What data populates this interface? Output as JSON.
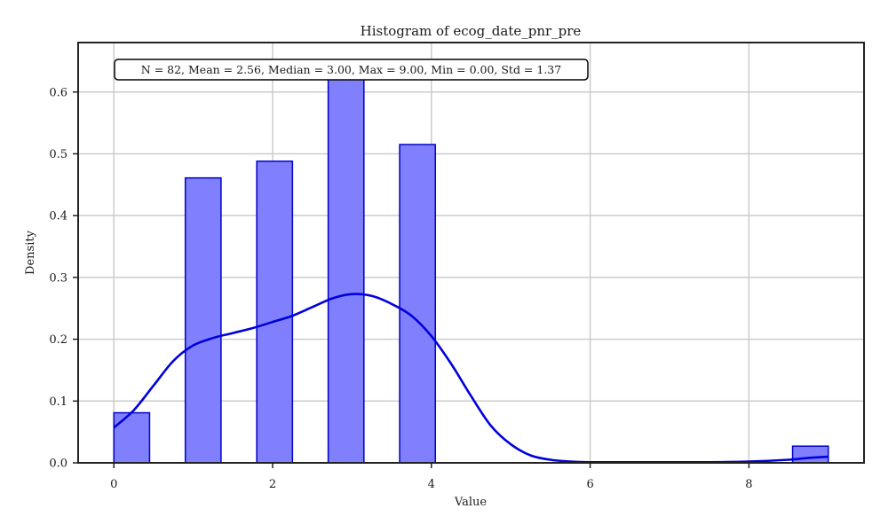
{
  "chart_data": {
    "type": "bar",
    "title": "Histogram of ecog_date_pnr_pre",
    "xlabel": "Value",
    "ylabel": "Density",
    "xlim": [
      -0.45,
      9.45
    ],
    "ylim": [
      0,
      0.68
    ],
    "xticks": [
      0,
      2,
      4,
      6,
      8
    ],
    "yticks": [
      0.0,
      0.1,
      0.2,
      0.3,
      0.4,
      0.5,
      0.6
    ],
    "grid": true,
    "bin_width": 0.45,
    "bins": [
      {
        "start": 0.0,
        "end": 0.45,
        "density": 0.081
      },
      {
        "start": 0.9,
        "end": 1.35,
        "density": 0.461
      },
      {
        "start": 1.8,
        "end": 2.25,
        "density": 0.488
      },
      {
        "start": 2.7,
        "end": 3.15,
        "density": 0.624
      },
      {
        "start": 3.6,
        "end": 4.05,
        "density": 0.515
      },
      {
        "start": 8.55,
        "end": 9.0,
        "density": 0.027
      }
    ],
    "kde": {
      "x": [
        0,
        0.25,
        0.5,
        0.75,
        1.0,
        1.25,
        1.5,
        1.75,
        2.0,
        2.25,
        2.5,
        2.75,
        3.0,
        3.25,
        3.5,
        3.75,
        4.0,
        4.25,
        4.5,
        4.75,
        5.0,
        5.25,
        5.5,
        5.75,
        6.0,
        6.5,
        7.0,
        7.5,
        8.0,
        8.5,
        8.75,
        9.0
      ],
      "y": [
        0.057,
        0.085,
        0.125,
        0.165,
        0.19,
        0.202,
        0.21,
        0.218,
        0.228,
        0.238,
        0.252,
        0.266,
        0.273,
        0.27,
        0.257,
        0.238,
        0.205,
        0.16,
        0.108,
        0.06,
        0.03,
        0.012,
        0.005,
        0.002,
        0.001,
        0.001,
        0.001,
        0.001,
        0.002,
        0.005,
        0.008,
        0.01
      ]
    },
    "stats_text": "N = 82, Mean = 2.56, Median = 3.00, Max = 9.00, Min = 0.00, Std = 1.37",
    "colors": {
      "bar_fill": "#8080ff",
      "bar_edge": "#0000cc",
      "kde_line": "#0000dd"
    }
  }
}
